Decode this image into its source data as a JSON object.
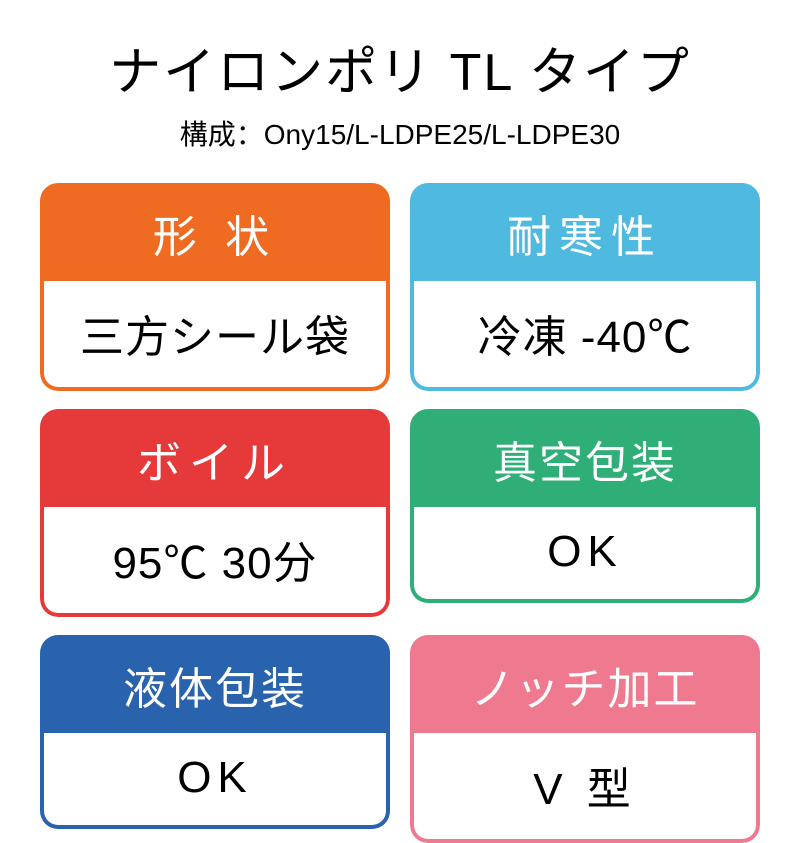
{
  "title": "ナイロンポリ TL タイプ",
  "subtitle": "構成：Ony15/L-LDPE25/L-LDPE30",
  "cards": [
    {
      "head": "形 状",
      "body": "三方シール袋",
      "color": "#f06b22",
      "head_tracking": "wide",
      "body_tracking": "tight"
    },
    {
      "head": "耐寒性",
      "body": "冷凍 -40℃",
      "color": "#4fb9e0",
      "head_tracking": "wide",
      "body_tracking": "tight"
    },
    {
      "head": "ボイル",
      "body": "95℃ 30分",
      "color": "#e63a3a",
      "head_tracking": "wide",
      "body_tracking": "tight"
    },
    {
      "head": "真空包装",
      "body": "OK",
      "color": "#2fae78",
      "head_tracking": "tight",
      "body_tracking": "wide"
    },
    {
      "head": "液体包装",
      "body": "OK",
      "color": "#2a63ad",
      "head_tracking": "tight",
      "body_tracking": "wide"
    },
    {
      "head": "ノッチ加工",
      "body": "V 型",
      "color": "#ef7a8f",
      "head_tracking": "tight",
      "body_tracking": "wide"
    }
  ],
  "styling": {
    "background_color": "#ffffff",
    "title_fontsize": 52,
    "subtitle_fontsize": 28,
    "card_head_fontsize": 44,
    "card_body_fontsize": 44,
    "card_border_radius": 18,
    "card_border_width": 4,
    "grid_gap_row": 18,
    "grid_gap_col": 20
  }
}
